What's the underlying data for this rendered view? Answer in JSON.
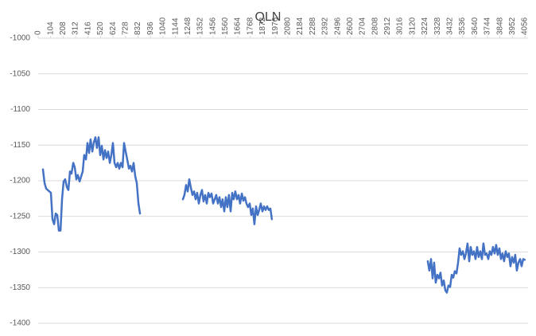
{
  "chart_data": {
    "type": "line",
    "title": "QLN",
    "color": "#4472c4",
    "grid": true,
    "x": [
      40,
      53,
      66,
      106,
      119,
      133,
      146,
      159,
      172,
      186,
      199,
      212,
      225,
      239,
      252,
      265,
      278,
      292,
      305,
      318,
      331,
      345,
      371,
      384,
      398,
      411,
      424,
      437,
      451,
      464,
      477,
      490,
      504,
      517,
      530,
      544,
      557,
      570,
      583,
      597,
      610,
      623,
      636,
      650,
      663,
      676,
      689,
      703,
      716,
      729,
      742,
      756,
      769,
      782,
      795,
      809,
      822,
      835,
      848,
      1000,
      1206,
      1219,
      1233,
      1246,
      1259,
      1272,
      1286,
      1299,
      1312,
      1325,
      1339,
      1352,
      1365,
      1378,
      1392,
      1405,
      1418,
      1431,
      1445,
      1458,
      1471,
      1484,
      1498,
      1511,
      1524,
      1537,
      1551,
      1564,
      1577,
      1590,
      1604,
      1617,
      1630,
      1643,
      1657,
      1670,
      1683,
      1697,
      1710,
      1723,
      1736,
      1749,
      1763,
      1776,
      1789,
      1802,
      1816,
      1829,
      1842,
      1855,
      1869,
      1882,
      1895,
      1908,
      1922,
      1935,
      1948,
      2600,
      3247,
      3260,
      3274,
      3287,
      3300,
      3313,
      3327,
      3340,
      3353,
      3366,
      3380,
      3393,
      3406,
      3419,
      3433,
      3446,
      3459,
      3472,
      3486,
      3499,
      3512,
      3525,
      3539,
      3552,
      3565,
      3578,
      3592,
      3605,
      3618,
      3631,
      3645,
      3658,
      3671,
      3684,
      3698,
      3711,
      3724,
      3737,
      3751,
      3764,
      3777,
      3790,
      3804,
      3817,
      3830,
      3843,
      3857,
      3870,
      3883,
      3896,
      3910,
      3923,
      3936,
      3949,
      3963,
      3976,
      3989,
      4002,
      4016,
      4029,
      4042,
      4055
    ],
    "values": [
      -1184,
      -1203,
      -1211,
      -1217,
      -1254,
      -1261,
      -1246,
      -1248,
      -1270,
      -1270,
      -1226,
      -1201,
      -1198,
      -1209,
      -1213,
      -1187,
      -1190,
      -1175,
      -1181,
      -1198,
      -1192,
      -1201,
      -1187,
      -1164,
      -1170,
      -1147,
      -1161,
      -1142,
      -1159,
      -1146,
      -1139,
      -1154,
      -1139,
      -1164,
      -1151,
      -1170,
      -1157,
      -1168,
      -1159,
      -1175,
      -1164,
      -1147,
      -1175,
      -1181,
      -1175,
      -1183,
      -1175,
      -1181,
      -1147,
      -1159,
      -1170,
      -1183,
      -1179,
      -1187,
      -1175,
      -1194,
      -1203,
      -1231,
      -1246,
      null,
      -1226,
      -1220,
      -1206,
      -1215,
      -1198,
      -1209,
      -1220,
      -1215,
      -1226,
      -1217,
      -1232,
      -1220,
      -1213,
      -1229,
      -1220,
      -1232,
      -1217,
      -1223,
      -1218,
      -1232,
      -1226,
      -1220,
      -1232,
      -1223,
      -1237,
      -1226,
      -1243,
      -1223,
      -1237,
      -1220,
      -1243,
      -1217,
      -1226,
      -1215,
      -1226,
      -1220,
      -1232,
      -1218,
      -1228,
      -1223,
      -1232,
      -1237,
      -1232,
      -1248,
      -1239,
      -1261,
      -1236,
      -1248,
      -1241,
      -1232,
      -1243,
      -1236,
      -1241,
      -1236,
      -1241,
      -1239,
      -1254,
      null,
      -1313,
      -1326,
      -1310,
      -1337,
      -1315,
      -1343,
      -1332,
      -1337,
      -1329,
      -1347,
      -1340,
      -1354,
      -1357,
      -1347,
      -1349,
      -1332,
      -1336,
      -1327,
      -1330,
      -1315,
      -1295,
      -1304,
      -1299,
      -1310,
      -1302,
      -1288,
      -1313,
      -1293,
      -1304,
      -1299,
      -1310,
      -1293,
      -1307,
      -1299,
      -1310,
      -1288,
      -1304,
      -1302,
      -1310,
      -1299,
      -1304,
      -1293,
      -1302,
      -1290,
      -1304,
      -1295,
      -1310,
      -1302,
      -1313,
      -1299,
      -1307,
      -1302,
      -1320,
      -1307,
      -1315,
      -1304,
      -1326,
      -1315,
      -1310,
      -1320,
      -1310,
      -1311
    ],
    "xlim": [
      0,
      4056
    ],
    "xticks": [
      0,
      104,
      208,
      312,
      416,
      520,
      624,
      728,
      832,
      936,
      1040,
      1144,
      1248,
      1352,
      1456,
      1560,
      1664,
      1768,
      1872,
      1976,
      2080,
      2184,
      2288,
      2392,
      2496,
      2600,
      2704,
      2808,
      2912,
      3016,
      3120,
      3224,
      3328,
      3432,
      3536,
      3640,
      3744,
      3848,
      3952,
      4056
    ],
    "ylim": [
      -1400,
      -1000
    ],
    "yticks": [
      -1000,
      -1050,
      -1100,
      -1150,
      -1200,
      -1250,
      -1300,
      -1350,
      -1400
    ]
  }
}
